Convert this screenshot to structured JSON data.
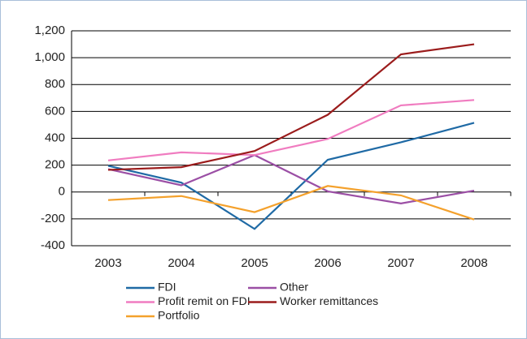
{
  "chart_data": {
    "type": "line",
    "categories": [
      "2003",
      "2004",
      "2005",
      "2006",
      "2007",
      "2008"
    ],
    "series": [
      {
        "name": "FDI",
        "color": "#1f6aa5",
        "values": [
          195,
          70,
          -275,
          240,
          370,
          515
        ]
      },
      {
        "name": "Other",
        "color": "#9b4fa5",
        "values": [
          170,
          50,
          275,
          5,
          -85,
          10
        ]
      },
      {
        "name": "Profit remit on FDI",
        "color": "#f07cc0",
        "values": [
          235,
          295,
          275,
          395,
          645,
          685
        ]
      },
      {
        "name": "Worker remittances",
        "color": "#9b1c1c",
        "values": [
          165,
          185,
          305,
          575,
          1025,
          1100
        ]
      },
      {
        "name": "Portfolio",
        "color": "#f4a12c",
        "values": [
          -60,
          -30,
          -150,
          45,
          -25,
          -205
        ]
      }
    ],
    "ylim": [
      -400,
      1200
    ],
    "yticks": [
      -400,
      -200,
      0,
      200,
      400,
      600,
      800,
      {
        "value": 1000,
        "label": "1,000"
      },
      {
        "value": 1200,
        "label": "1,200"
      }
    ],
    "grid": true,
    "legend": "bottom"
  }
}
